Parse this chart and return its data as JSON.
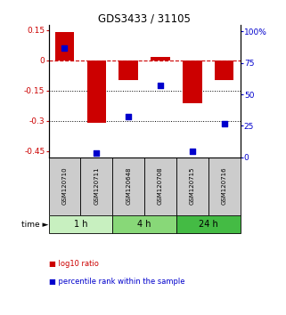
{
  "title": "GDS3433 / 31105",
  "samples": [
    "GSM120710",
    "GSM120711",
    "GSM120648",
    "GSM120708",
    "GSM120715",
    "GSM120716"
  ],
  "log10_ratio": [
    0.142,
    -0.31,
    -0.098,
    0.018,
    -0.21,
    -0.098
  ],
  "percentile_rank": [
    87,
    3,
    32,
    57,
    5,
    27
  ],
  "time_groups": [
    {
      "label": "1 h",
      "indices": [
        0,
        1
      ],
      "color": "#c8f0c0"
    },
    {
      "label": "4 h",
      "indices": [
        2,
        3
      ],
      "color": "#88d878"
    },
    {
      "label": "24 h",
      "indices": [
        4,
        5
      ],
      "color": "#44bb44"
    }
  ],
  "bar_color": "#cc0000",
  "dot_color": "#0000cc",
  "ylim_left": [
    -0.48,
    0.175
  ],
  "ylim_right": [
    0,
    105
  ],
  "yticks_left": [
    0.15,
    0,
    -0.15,
    -0.3,
    -0.45
  ],
  "yticks_right": [
    100,
    75,
    50,
    25,
    0
  ],
  "bar_width": 0.6,
  "dot_size": 18,
  "hline_0_color": "#cc0000",
  "hline_0_style": "--",
  "legend_items": [
    "log10 ratio",
    "percentile rank within the sample"
  ],
  "bg_color": "white",
  "sample_box_color": "#cccccc"
}
